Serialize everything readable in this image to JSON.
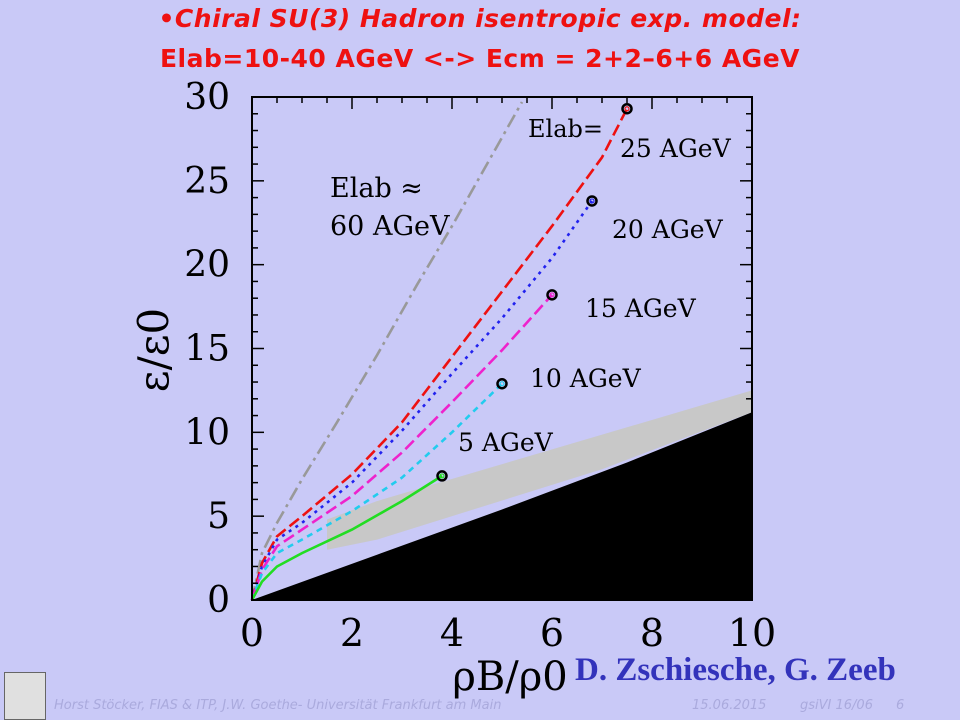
{
  "title": {
    "line1": "•Chiral SU(3) Hadron isentropic exp. model:",
    "line2": "Elab=10-40 AGeV <-> Ecm = 2+2–6+6 AGeV"
  },
  "credit": "D. Zschiesche, G. Zeeb",
  "footer": {
    "left": "Horst Stöcker, FIAS & ITP, J.W. Goethe- Universität Frankfurt am Main",
    "date": "15.06.2015",
    "ref": "gsiVI 16/06",
    "page": "6"
  },
  "chart_data": {
    "type": "line",
    "xlabel": "ρB/ρ0",
    "ylabel": "ε/ε0",
    "xlim": [
      0,
      10
    ],
    "ylim": [
      0,
      30
    ],
    "xticks": [
      "0",
      "2",
      "4",
      "6",
      "8",
      "10"
    ],
    "yticks": [
      "0",
      "5",
      "10",
      "15",
      "20",
      "25",
      "30"
    ],
    "annotations": {
      "elab_prefix": "Elab=",
      "elab_approx": "Elab ≈",
      "label_60": "60 AGeV",
      "label_25": "25 AGeV",
      "label_20": "20 AGeV",
      "label_15": "15 AGeV",
      "label_10": "10 AGeV",
      "label_5": "5 AGeV"
    },
    "series": [
      {
        "color": "#999999",
        "dash": "dashdot",
        "x": [
          0,
          0.2,
          0.5,
          1.0,
          1.7,
          2.5,
          3.3,
          4.0,
          4.7,
          5.4
        ],
        "y": [
          0,
          2.8,
          4.6,
          7.2,
          10.6,
          14.6,
          18.8,
          22.3,
          26.0,
          29.7
        ]
      },
      {
        "color": "#ee1111",
        "dash": "longdash",
        "end_marker": true,
        "x": [
          0,
          0.2,
          0.5,
          1.0,
          2.0,
          3.0,
          4.0,
          5.0,
          6.0,
          7.0,
          7.5
        ],
        "y": [
          0,
          2.2,
          3.8,
          5.0,
          7.5,
          10.6,
          14.5,
          18.4,
          22.3,
          26.4,
          29.3
        ]
      },
      {
        "color": "#2222ee",
        "dash": "dotted",
        "end_marker": true,
        "x": [
          0,
          0.2,
          0.5,
          1.0,
          2.0,
          3.0,
          4.0,
          5.0,
          6.0,
          6.8
        ],
        "y": [
          0,
          2.0,
          3.6,
          4.6,
          7.0,
          10.1,
          13.5,
          16.8,
          20.4,
          23.8
        ]
      },
      {
        "color": "#ee22cc",
        "dash": "longdash",
        "end_marker": true,
        "x": [
          0,
          0.2,
          0.5,
          1.0,
          2.0,
          3.0,
          4.0,
          5.0,
          6.0
        ],
        "y": [
          0,
          1.8,
          3.2,
          4.2,
          6.2,
          8.8,
          11.8,
          14.9,
          18.2
        ]
      },
      {
        "color": "#22ccee",
        "dash": "dashed",
        "end_marker": true,
        "x": [
          0,
          0.2,
          0.5,
          1.0,
          2.0,
          3.0,
          4.0,
          5.0
        ],
        "y": [
          0,
          1.6,
          2.8,
          3.6,
          5.3,
          7.3,
          10.0,
          12.9
        ]
      },
      {
        "color": "#22dd22",
        "dash": "solid",
        "end_marker": true,
        "x": [
          0,
          0.2,
          0.5,
          1.0,
          2.0,
          3.0,
          3.8
        ],
        "y": [
          0,
          1.1,
          2.0,
          2.8,
          4.2,
          5.9,
          7.4
        ]
      }
    ],
    "regions": [
      {
        "name": "grey-band",
        "color": "#c8c8c8",
        "x": [
          1.5,
          2.5,
          10,
          10,
          7,
          2.5,
          1.5
        ],
        "y": [
          4.8,
          5.9,
          12.5,
          11.2,
          7.8,
          3.6,
          3.0
        ]
      },
      {
        "name": "black-region",
        "color": "#000000",
        "x": [
          0,
          2.5,
          5,
          7.5,
          10,
          10,
          0
        ],
        "y": [
          0,
          2.7,
          5.4,
          8.2,
          11.2,
          0,
          0
        ]
      }
    ]
  }
}
